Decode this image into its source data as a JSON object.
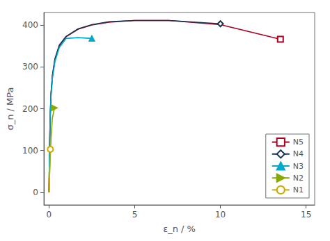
{
  "chart_data": {
    "type": "line",
    "xlabel": "ε_n / %",
    "ylabel": "σ_n / MPa",
    "xlim": [
      -0.3,
      15.5
    ],
    "ylim": [
      -30,
      430
    ],
    "xticks": [
      0,
      5,
      10,
      15
    ],
    "yticks": [
      0,
      100,
      200,
      300,
      400
    ],
    "grid": false,
    "legend": "lower right",
    "series": [
      {
        "name": "N5",
        "color": "#aa0022",
        "marker": "square_open",
        "x": [
          0.0,
          0.03,
          0.07,
          0.12,
          0.2,
          0.35,
          0.6,
          1.0,
          1.7,
          2.5,
          3.5,
          5.0,
          7.0,
          10.0,
          13.5
        ],
        "values": [
          0,
          100,
          180,
          235,
          278,
          318,
          350,
          372,
          390,
          400,
          407,
          411,
          411,
          401,
          366
        ]
      },
      {
        "name": "N4",
        "color": "#1a3550",
        "marker": "diamond_open",
        "x": [
          0.0,
          0.03,
          0.07,
          0.12,
          0.2,
          0.35,
          0.6,
          1.0,
          1.7,
          2.5,
          3.5,
          5.0,
          7.0,
          10.0
        ],
        "values": [
          0,
          102,
          182,
          238,
          280,
          320,
          352,
          373,
          391,
          401,
          408,
          411,
          411,
          403
        ]
      },
      {
        "name": "N3",
        "color": "#00aacc",
        "marker": "triangle",
        "x": [
          0.0,
          0.03,
          0.07,
          0.12,
          0.2,
          0.35,
          0.6,
          1.0,
          1.7,
          2.5
        ],
        "values": [
          0,
          98,
          178,
          232,
          272,
          313,
          346,
          368,
          370,
          368
        ]
      },
      {
        "name": "N2",
        "color": "#88aa00",
        "marker": "triangle_right",
        "x": [
          0.0,
          0.05,
          0.12,
          0.2,
          0.32
        ],
        "values": [
          0,
          60,
          130,
          178,
          202
        ]
      },
      {
        "name": "N1",
        "color": "#ccaa00",
        "marker": "circle_open",
        "x": [
          0.0,
          0.08
        ],
        "values": [
          0,
          103
        ]
      }
    ]
  }
}
